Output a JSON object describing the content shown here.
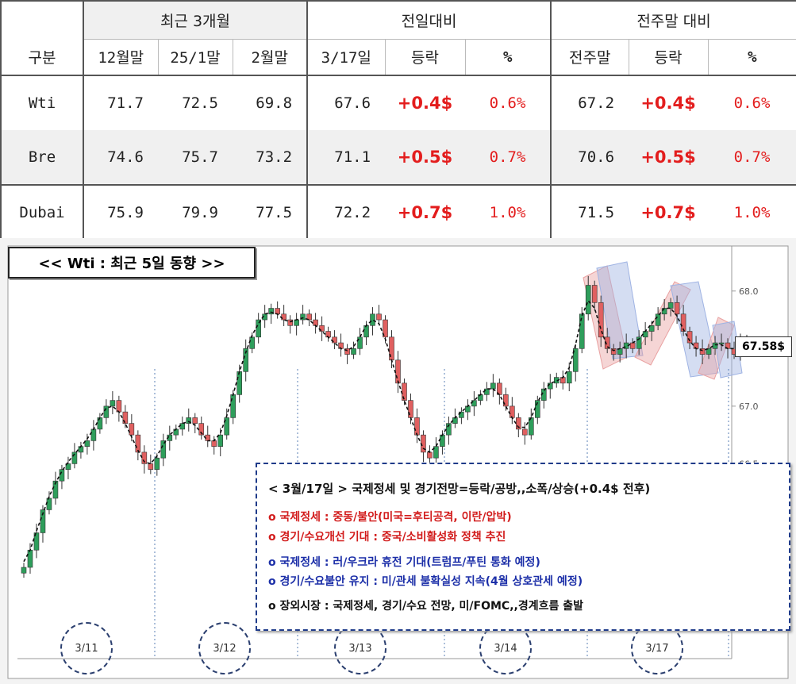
{
  "table": {
    "group_headers": [
      "최근 3개월",
      "전일대비",
      "전주말 대비"
    ],
    "sub_headers": [
      "구분",
      "12월말",
      "25/1말",
      "2월말",
      "3/17일",
      "등락",
      "%",
      "전주말",
      "등락",
      "%"
    ],
    "rows": [
      {
        "name": "Wti",
        "m12": "71.7",
        "m1": "72.5",
        "m2": "69.8",
        "today": "67.6",
        "chg": "+0.4$",
        "pct": "0.6%",
        "prev_week": "67.2",
        "wchg": "+0.4$",
        "wpct": "0.6%"
      },
      {
        "name": "Bre",
        "m12": "74.6",
        "m1": "75.7",
        "m2": "73.2",
        "today": "71.1",
        "chg": "+0.5$",
        "pct": "0.7%",
        "prev_week": "70.6",
        "wchg": "+0.5$",
        "wpct": "0.7%"
      },
      {
        "name": "Dubai",
        "m12": "75.9",
        "m1": "79.9",
        "m2": "77.5",
        "today": "72.2",
        "chg": "+0.7$",
        "pct": "1.0%",
        "prev_week": "71.5",
        "wchg": "+0.7$",
        "wpct": "1.0%"
      }
    ]
  },
  "chart_title": "<< Wti : 최근 5일 동향 >>",
  "price_tag": "67.58$",
  "note": {
    "heading": "< 3월/17일 > 국제정세 및 경기전망=등락/공방,,소폭/상승(+0.4$ 전후)",
    "red_lines": [
      "o 국제정세 : 중동/불안(미국=후티공격, 이란/압박)",
      "o 경기/수요개선 기대 : 중국/소비활성화 정책 추진"
    ],
    "blue_lines": [
      "o 국제정세 : 러/우크라 휴전 기대(트럼프/푸틴 통화 예정)",
      "o 경기/수요불안 유지 : 미/관세 불확실성 지속(4월 상호관세 예정)"
    ],
    "black_lines": [
      "o 장외시장 : 국제정세, 경기/수요 전망, 미/FOMC,,경계흐름 출발"
    ]
  },
  "colors": {
    "up": "#2e9e5b",
    "down": "#e06060",
    "red_text": "#e31d1d",
    "blue_text": "#1c2fa8"
  },
  "chart_data": {
    "type": "candlestick",
    "title": "<< Wti : 최근 5일 동향 >>",
    "y_ticks": [
      "68.0",
      "67.5",
      "67.0",
      "66.5"
    ],
    "ylim": [
      65.6,
      68.15
    ],
    "day_labels": [
      "3/11",
      "3/12",
      "3/13",
      "3/14",
      "3/17"
    ],
    "last_price": 67.58,
    "closes": [
      65.6,
      65.75,
      65.9,
      66.1,
      66.2,
      66.35,
      66.45,
      66.5,
      66.6,
      66.65,
      66.7,
      66.8,
      66.9,
      67.0,
      67.05,
      66.95,
      66.85,
      66.75,
      66.6,
      66.5,
      66.45,
      66.55,
      66.7,
      66.75,
      66.8,
      66.85,
      66.9,
      66.85,
      66.75,
      66.7,
      66.65,
      66.75,
      66.9,
      67.1,
      67.3,
      67.5,
      67.6,
      67.75,
      67.8,
      67.85,
      67.8,
      67.75,
      67.7,
      67.75,
      67.8,
      67.75,
      67.7,
      67.65,
      67.6,
      67.55,
      67.5,
      67.45,
      67.5,
      67.6,
      67.7,
      67.8,
      67.75,
      67.6,
      67.4,
      67.2,
      67.05,
      66.9,
      66.75,
      66.6,
      66.55,
      66.65,
      66.75,
      66.85,
      66.9,
      66.95,
      67.0,
      67.05,
      67.1,
      67.15,
      67.2,
      67.1,
      67.0,
      66.9,
      66.8,
      66.75,
      66.9,
      67.05,
      67.15,
      67.2,
      67.25,
      67.2,
      67.3,
      67.5,
      67.8,
      68.05,
      67.9,
      67.6,
      67.5,
      67.45,
      67.5,
      67.55,
      67.5,
      67.6,
      67.65,
      67.7,
      67.8,
      67.85,
      67.9,
      67.8,
      67.65,
      67.55,
      67.5,
      67.45,
      67.5,
      67.55,
      67.55,
      67.5,
      67.45,
      67.55,
      67.58
    ]
  }
}
